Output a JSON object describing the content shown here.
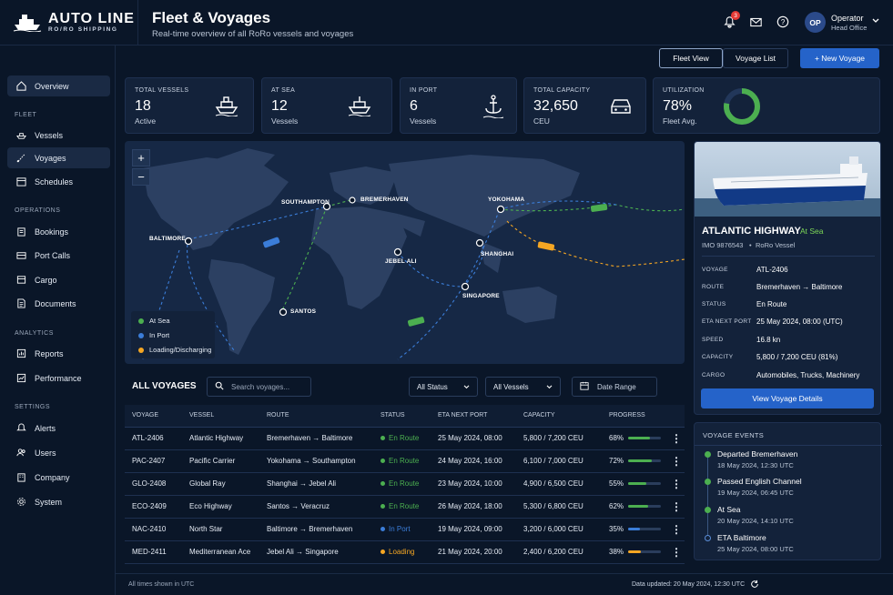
{
  "app": {
    "name": "AUTO LINE",
    "tagline": "RO/RO SHIPPING"
  },
  "header": {
    "title": "Fleet & Voyages",
    "subtitle": "Real-time overview of all RoRo vessels and voyages",
    "notification_count": "3",
    "user_initials": "OP",
    "user_name": "Operator",
    "user_role": "Head Office"
  },
  "sidebar": {
    "overview": "Overview",
    "sections": {
      "fleet": "FLEET",
      "operations": "OPERATIONS",
      "analytics": "ANALYTICS",
      "settings": "SETTINGS"
    },
    "items": {
      "vessels": "Vessels",
      "voyages": "Voyages",
      "schedules": "Schedules",
      "bookings": "Bookings",
      "port_calls": "Port Calls",
      "cargo": "Cargo",
      "documents": "Documents",
      "reports": "Reports",
      "performance": "Performance",
      "alerts": "Alerts",
      "users": "Users",
      "company": "Company",
      "system": "System"
    }
  },
  "toolbar": {
    "fleet_view": "Fleet View",
    "voyage_list": "Voyage List",
    "new_voyage": "+ New Voyage"
  },
  "stats": [
    {
      "label": "TOTAL VESSELS",
      "value": "18",
      "sub": "Active"
    },
    {
      "label": "AT SEA",
      "value": "12",
      "sub": "Vessels"
    },
    {
      "label": "IN PORT",
      "value": "6",
      "sub": "Vessels"
    },
    {
      "label": "TOTAL CAPACITY",
      "value": "32,650",
      "sub": "CEU"
    },
    {
      "label": "UTILIZATION",
      "value": "78%",
      "sub": "Fleet Avg.",
      "percent": 78
    }
  ],
  "map": {
    "zoom_in": "+",
    "zoom_out": "−",
    "ports": [
      "SOUTHAMPTON",
      "BREMERHAVEN",
      "YOKOHAMA",
      "BALTIMORE",
      "JEBEL ALI",
      "SHANGHAI",
      "SINGAPORE",
      "SANTOS"
    ],
    "legend": [
      {
        "label": "At Sea",
        "color": "#4caf50"
      },
      {
        "label": "In Port",
        "color": "#3b7dd8"
      },
      {
        "label": "Loading/Discharging",
        "color": "#f5a623"
      }
    ]
  },
  "vessel": {
    "name": "ATLANTIC HIGHWAY",
    "status": "At Sea",
    "imo": "IMO 9876543",
    "type": "RoRo Vessel",
    "fields": [
      {
        "label": "VOYAGE",
        "value": "ATL-2406"
      },
      {
        "label": "ROUTE",
        "from": "Bremerhaven",
        "to": "Baltimore"
      },
      {
        "label": "STATUS",
        "value": "En Route"
      },
      {
        "label": "ETA NEXT PORT",
        "value": "25 May 2024, 08:00 (UTC)"
      },
      {
        "label": "SPEED",
        "value": "16.8 kn"
      },
      {
        "label": "CAPACITY",
        "value": "5,800 / 7,200 CEU (81%)"
      },
      {
        "label": "CARGO",
        "value": "Automobiles, Trucks, Machinery"
      }
    ],
    "button": "View Voyage Details"
  },
  "events": {
    "title": "VOYAGE EVENTS",
    "items": [
      {
        "title": "Departed Bremerhaven",
        "date": "18 May 2024, 12:30 UTC"
      },
      {
        "title": "Passed English Channel",
        "date": "19 May 2024, 06:45 UTC"
      },
      {
        "title": "At Sea",
        "date": "20 May 2024, 14:10 UTC"
      },
      {
        "title": "ETA Baltimore",
        "date": "25 May 2024, 08:00 UTC"
      }
    ]
  },
  "voyages": {
    "title": "ALL VOYAGES",
    "search_placeholder": "Search voyages...",
    "status_filter": "All Status",
    "vessel_filter": "All Vessels",
    "date_range": "Date Range",
    "columns": [
      "VOYAGE",
      "VESSEL",
      "ROUTE",
      "STATUS",
      "ETA NEXT PORT",
      "CAPACITY",
      "PROGRESS"
    ],
    "rows": [
      {
        "voyage": "ATL-2406",
        "vessel": "Atlantic Highway",
        "from": "Bremerhaven",
        "to": "Baltimore",
        "status": "En Route",
        "eta": "25 May 2024, 08:00",
        "capacity": "5,800 / 7,200 CEU",
        "progress": "68%",
        "color": "#4caf50"
      },
      {
        "voyage": "PAC-2407",
        "vessel": "Pacific Carrier",
        "from": "Yokohama",
        "to": "Southampton",
        "status": "En Route",
        "eta": "24 May 2024, 16:00",
        "capacity": "6,100 / 7,000 CEU",
        "progress": "72%",
        "color": "#4caf50"
      },
      {
        "voyage": "GLO-2408",
        "vessel": "Global Ray",
        "from": "Shanghai",
        "to": "Jebel Ali",
        "status": "En Route",
        "eta": "23 May 2024, 10:00",
        "capacity": "4,900 / 6,500 CEU",
        "progress": "55%",
        "color": "#4caf50"
      },
      {
        "voyage": "ECO-2409",
        "vessel": "Eco Highway",
        "from": "Santos",
        "to": "Veracruz",
        "status": "En Route",
        "eta": "26 May 2024, 18:00",
        "capacity": "5,300 / 6,800 CEU",
        "progress": "62%",
        "color": "#4caf50"
      },
      {
        "voyage": "NAC-2410",
        "vessel": "North Star",
        "from": "Baltimore",
        "to": "Bremerhaven",
        "status": "In Port",
        "eta": "19 May 2024, 09:00",
        "capacity": "3,200 / 6,000 CEU",
        "progress": "35%",
        "color": "#3b7dd8"
      },
      {
        "voyage": "MED-2411",
        "vessel": "Mediterranean Ace",
        "from": "Jebel Ali",
        "to": "Singapore",
        "status": "Loading",
        "eta": "21 May 2024, 20:00",
        "capacity": "2,400 / 6,200 CEU",
        "progress": "38%",
        "color": "#f5a623"
      }
    ]
  },
  "footer": {
    "left": "All times shown in UTC",
    "right": "Data updated: 20 May 2024, 12:30 UTC"
  }
}
